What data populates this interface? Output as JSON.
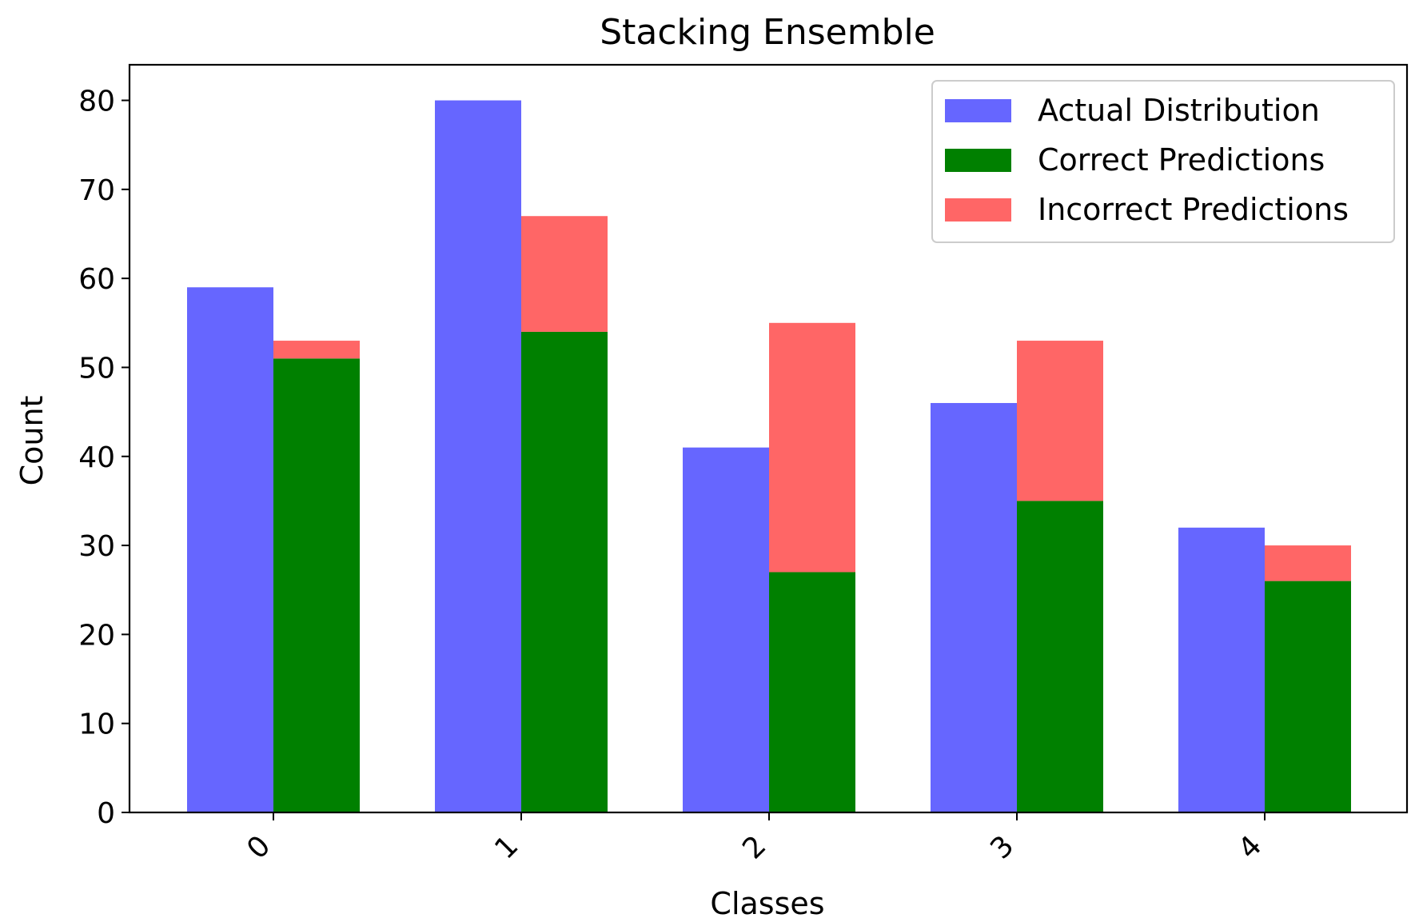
{
  "chart_data": {
    "type": "bar",
    "title": "Stacking Ensemble",
    "xlabel": "Classes",
    "ylabel": "Count",
    "categories": [
      "0",
      "1",
      "2",
      "3",
      "4"
    ],
    "ylim": [
      0,
      84
    ],
    "yticks": [
      0,
      10,
      20,
      30,
      40,
      50,
      60,
      70,
      80
    ],
    "grid": false,
    "legend_position": "top-right",
    "series": [
      {
        "name": "Actual Distribution",
        "values": [
          59,
          80,
          41,
          46,
          32
        ],
        "color": "#6666ff",
        "group": "left"
      },
      {
        "name": "Correct Predictions",
        "values": [
          51,
          54,
          27,
          35,
          26
        ],
        "color": "#008000",
        "group": "right",
        "stack": "bottom"
      },
      {
        "name": "Incorrect Predictions",
        "values": [
          2,
          13,
          28,
          18,
          4
        ],
        "color": "#ff6666",
        "group": "right",
        "stack": "top"
      }
    ]
  }
}
